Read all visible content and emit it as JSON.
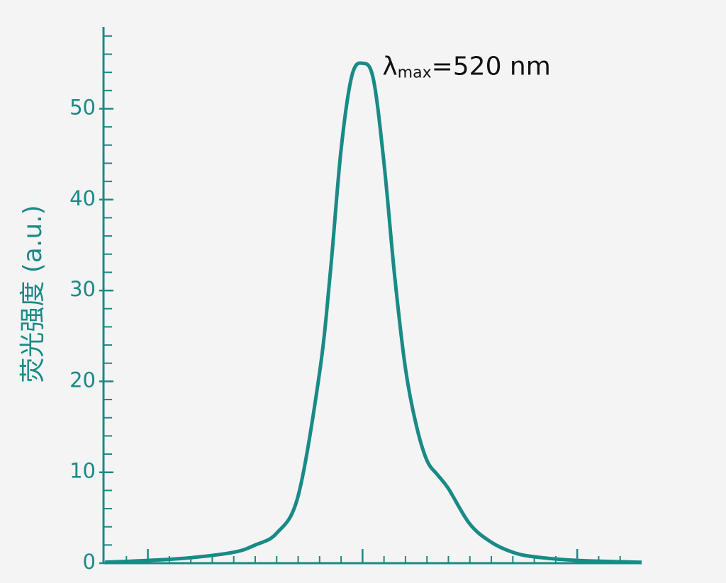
{
  "chart_data": {
    "type": "line",
    "y_label": "荧光强度 (a.u.)",
    "annotation": {
      "symbol": "λ",
      "subscript": "max",
      "text": "=520 nm",
      "x": 520,
      "y": 55
    },
    "x": [
      400,
      420,
      440,
      460,
      470,
      480,
      490,
      500,
      505,
      510,
      515,
      520,
      525,
      530,
      535,
      540,
      545,
      550,
      555,
      560,
      570,
      580,
      590,
      600,
      620,
      650
    ],
    "series": [
      {
        "name": "荧光强度",
        "color": "#1a8a87",
        "values": [
          0.1,
          0.3,
          0.6,
          1.2,
          2,
          3.3,
          7.4,
          21,
          32,
          45.5,
          53.6,
          55,
          53.3,
          44,
          31.5,
          21.4,
          15.2,
          11.3,
          9.7,
          8.2,
          4.3,
          2.3,
          1.2,
          0.7,
          0.3,
          0.1
        ]
      }
    ],
    "xlim": [
      400,
      650
    ],
    "xticks": [
      410,
      420,
      430,
      440,
      450,
      460,
      470,
      480,
      490,
      500,
      510,
      520,
      530,
      540,
      550,
      560,
      570,
      580,
      590,
      600,
      610,
      620,
      630,
      640
    ],
    "x_major_ticks": [
      420,
      520,
      620
    ],
    "ylim": [
      0,
      59
    ],
    "yticks": [
      0,
      10,
      20,
      30,
      40,
      50
    ],
    "y_minor_ticks": [
      2,
      4,
      6,
      8,
      12,
      14,
      16,
      18,
      22,
      24,
      26,
      28,
      32,
      34,
      36,
      38,
      42,
      44,
      46,
      48,
      52,
      54,
      56,
      58
    ],
    "axis_color": "#1a8a87"
  }
}
